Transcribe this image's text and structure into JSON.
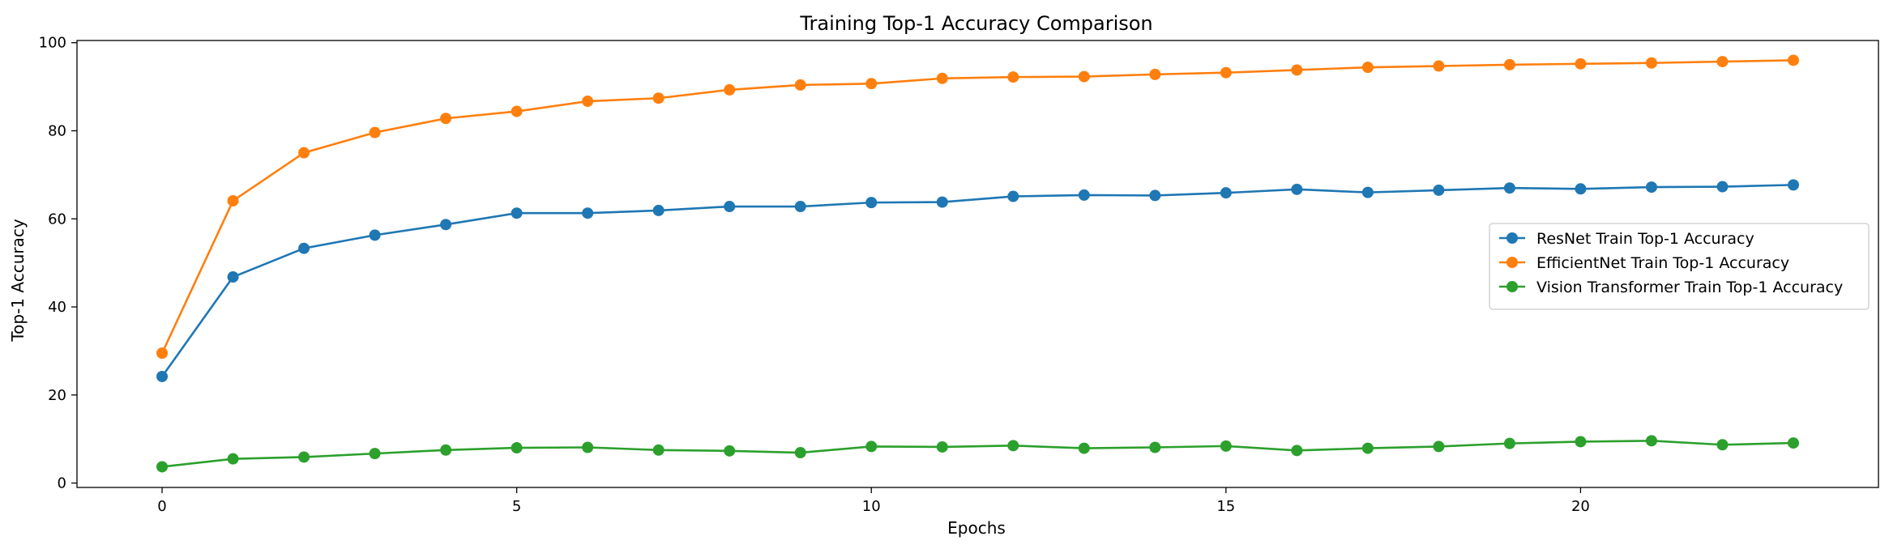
{
  "chart_data": {
    "type": "line",
    "title": "Training Top-1 Accuracy Comparison",
    "xlabel": "Epochs",
    "ylabel": "Top-1 Accuracy",
    "xlim": [
      -1.2,
      24.2
    ],
    "ylim": [
      -1,
      100.5
    ],
    "xticks": [
      0,
      5,
      10,
      15,
      20
    ],
    "yticks": [
      0,
      20,
      40,
      60,
      80,
      100
    ],
    "grid": false,
    "legend_position": "center-right",
    "x": [
      0,
      1,
      2,
      3,
      4,
      5,
      6,
      7,
      8,
      9,
      10,
      11,
      12,
      13,
      14,
      15,
      16,
      17,
      18,
      19,
      20,
      21,
      22,
      23
    ],
    "series": [
      {
        "name": "ResNet Train Top-1 Accuracy",
        "color": "#1f77b4",
        "values": [
          24.2,
          46.8,
          53.3,
          56.3,
          58.7,
          61.3,
          61.3,
          61.9,
          62.8,
          62.8,
          63.7,
          63.8,
          65.1,
          65.4,
          65.3,
          65.9,
          66.7,
          66.0,
          66.5,
          67.0,
          66.8,
          67.2,
          67.3,
          67.7
        ]
      },
      {
        "name": "EfficientNet Train Top-1 Accuracy",
        "color": "#ff7f0e",
        "values": [
          29.5,
          64.1,
          75.0,
          79.6,
          82.8,
          84.4,
          86.7,
          87.4,
          89.3,
          90.4,
          90.7,
          91.9,
          92.2,
          92.3,
          92.8,
          93.2,
          93.8,
          94.4,
          94.7,
          95.0,
          95.2,
          95.4,
          95.7,
          96.0
        ]
      },
      {
        "name": "Vision Transformer Train Top-1 Accuracy",
        "color": "#2ca02c",
        "values": [
          3.7,
          5.5,
          5.9,
          6.7,
          7.5,
          8.0,
          8.1,
          7.5,
          7.3,
          6.9,
          8.3,
          8.2,
          8.5,
          7.9,
          8.1,
          8.4,
          7.4,
          7.9,
          8.3,
          9.0,
          9.4,
          9.6,
          8.7,
          9.1
        ]
      }
    ]
  }
}
